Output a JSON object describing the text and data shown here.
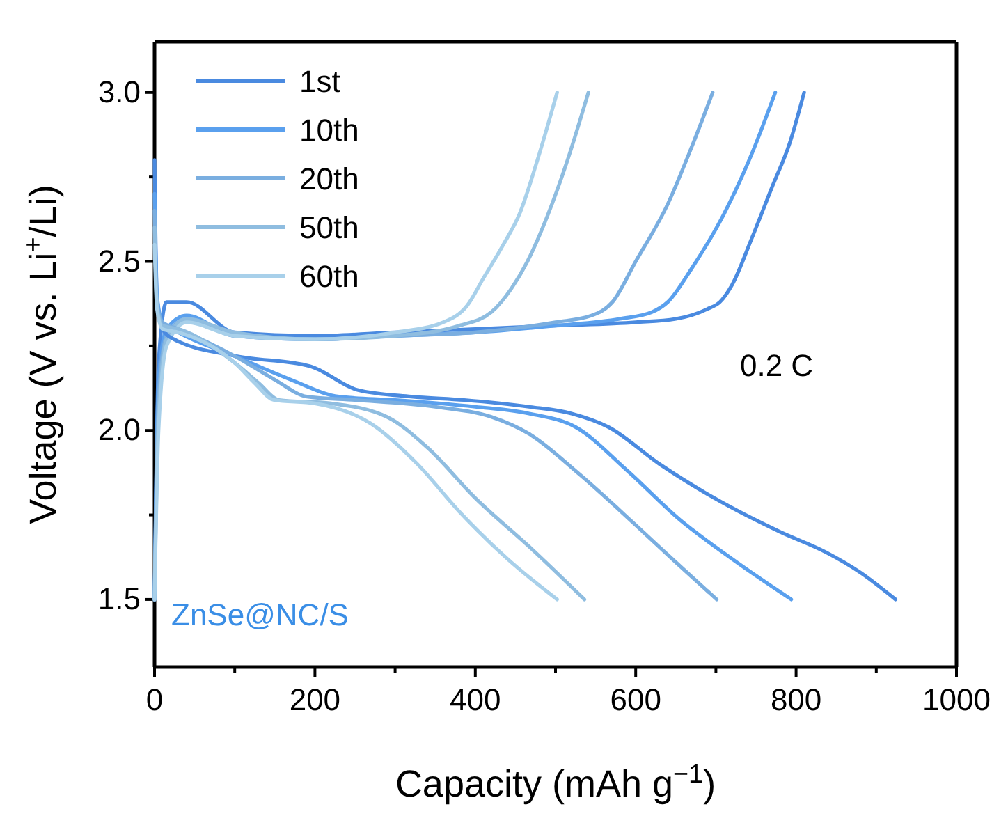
{
  "chart_data": {
    "type": "line",
    "xlabel": "Capacity (mAh g$^{−1}$)",
    "ylabel": "Voltage (V vs. Li$^{+}$/Li)",
    "xlim": [
      0,
      1000
    ],
    "ylim": [
      1.3,
      3.15
    ],
    "xticks": [
      0,
      {
        "value": 100,
        "label": null
      },
      200,
      {
        "value": 300,
        "label": null
      },
      400,
      {
        "value": 500,
        "label": null
      },
      600,
      {
        "value": 700,
        "label": null
      },
      800,
      {
        "value": 900,
        "label": null
      },
      1000
    ],
    "yticks": [
      1.5,
      {
        "value": 1.75,
        "label": null
      },
      {
        "value": 2,
        "label": "2.0"
      },
      {
        "value": 2.25,
        "label": null
      },
      2.5,
      {
        "value": 2.75,
        "label": null
      },
      {
        "value": 3,
        "label": "3.0"
      }
    ],
    "legend": "top left",
    "grid": false,
    "line_style": "solid",
    "marker": "none",
    "annotations": [
      "0.2 C",
      "ZnSe@NC/S"
    ],
    "series": [
      {
        "name": "1st",
        "color": "#4a8ae0",
        "x": [
          0,
          5,
          15,
          40,
          100,
          200,
          300,
          400,
          500,
          600,
          650,
          690,
          705,
          720,
          745,
          770,
          792,
          810
        ],
        "values": [
          1.5,
          2.2,
          2.38,
          2.38,
          2.29,
          2.28,
          2.29,
          2.3,
          2.31,
          2.32,
          2.33,
          2.36,
          2.38,
          2.43,
          2.57,
          2.72,
          2.85,
          3.0
        ]
      },
      {
        "name": "10th",
        "color": "#5aa0ee",
        "x": [
          0,
          5,
          15,
          40,
          100,
          200,
          300,
          400,
          500,
          580,
          620,
          640,
          670,
          710,
          745,
          774
        ],
        "values": [
          1.5,
          2.15,
          2.3,
          2.34,
          2.28,
          2.27,
          2.28,
          2.29,
          2.31,
          2.33,
          2.35,
          2.38,
          2.48,
          2.64,
          2.82,
          3.0
        ]
      },
      {
        "name": "20th",
        "color": "#7aaee0",
        "x": [
          0,
          5,
          15,
          40,
          100,
          200,
          300,
          400,
          500,
          545,
          571,
          600,
          640,
          670,
          696
        ],
        "values": [
          1.5,
          2.1,
          2.28,
          2.33,
          2.28,
          2.27,
          2.28,
          2.29,
          2.32,
          2.34,
          2.38,
          2.5,
          2.67,
          2.84,
          3.0
        ]
      },
      {
        "name": "50th",
        "color": "#8fbde0",
        "x": [
          0,
          5,
          15,
          40,
          100,
          200,
          300,
          380,
          420,
          445,
          465,
          484,
          515,
          541
        ],
        "values": [
          1.5,
          2.05,
          2.27,
          2.33,
          2.29,
          2.27,
          2.28,
          2.31,
          2.35,
          2.42,
          2.5,
          2.6,
          2.8,
          3.0
        ]
      },
      {
        "name": "60th",
        "color": "#a8d0ea",
        "x": [
          0,
          5,
          15,
          40,
          100,
          200,
          300,
          360,
          390,
          410,
          435,
          455,
          480,
          502
        ],
        "values": [
          1.5,
          2.0,
          2.25,
          2.32,
          2.28,
          2.27,
          2.29,
          2.32,
          2.37,
          2.45,
          2.55,
          2.64,
          2.82,
          3.0
        ]
      },
      {
        "color": "#4a8ae0",
        "x": [
          0,
          3,
          10,
          24,
          102,
          194,
          253,
          320,
          386,
          467,
          520,
          566,
          630,
          698,
          780,
          837,
          880,
          924
        ],
        "values": [
          2.8,
          2.4,
          2.3,
          2.27,
          2.22,
          2.19,
          2.12,
          2.1,
          2.09,
          2.07,
          2.05,
          2.01,
          1.9,
          1.8,
          1.7,
          1.64,
          1.58,
          1.5
        ]
      },
      {
        "color": "#5aa0ee",
        "x": [
          0,
          3,
          10,
          30,
          100,
          170,
          230,
          300,
          400,
          467,
          525,
          590,
          653,
          720,
          794
        ],
        "values": [
          2.7,
          2.4,
          2.32,
          2.29,
          2.22,
          2.15,
          2.1,
          2.09,
          2.07,
          2.05,
          2.01,
          1.88,
          1.74,
          1.62,
          1.5
        ]
      },
      {
        "color": "#7aaee0",
        "x": [
          0,
          3,
          10,
          30,
          100,
          150,
          190,
          250,
          350,
          420,
          467,
          530,
          600,
          650,
          701
        ],
        "values": [
          2.65,
          2.38,
          2.32,
          2.3,
          2.22,
          2.15,
          2.1,
          2.09,
          2.07,
          2.04,
          1.99,
          1.87,
          1.72,
          1.61,
          1.5
        ]
      },
      {
        "color": "#8fbde0",
        "x": [
          0,
          3,
          10,
          30,
          100,
          130,
          155,
          220,
          290,
          340,
          400,
          470,
          536
        ],
        "values": [
          2.6,
          2.37,
          2.31,
          2.3,
          2.2,
          2.14,
          2.09,
          2.08,
          2.04,
          1.95,
          1.8,
          1.65,
          1.5
        ]
      },
      {
        "color": "#a8d0ea",
        "x": [
          0,
          3,
          10,
          30,
          100,
          125,
          149,
          200,
          270,
          328,
          380,
          440,
          502
        ],
        "values": [
          2.55,
          2.36,
          2.3,
          2.29,
          2.2,
          2.14,
          2.09,
          2.08,
          2.02,
          1.9,
          1.76,
          1.62,
          1.5
        ]
      }
    ]
  }
}
